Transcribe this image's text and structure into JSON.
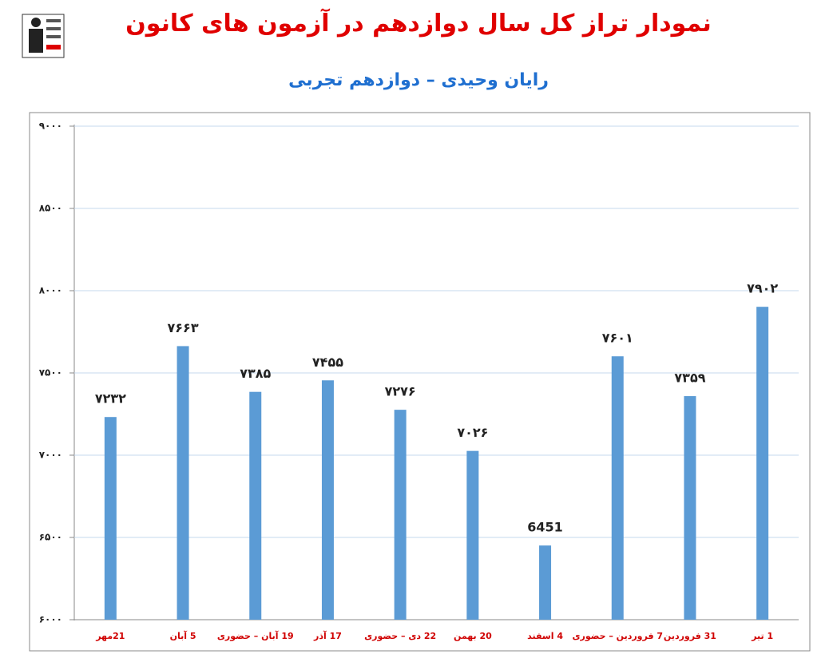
{
  "chart_data": {
    "type": "bar",
    "title": "نمودار تراز کل سال دوازدهم در آزمون های کانون",
    "subtitle": "رایان وحیدی – دوازدهم تجربی",
    "categories": [
      "21مهر",
      "5 آبان",
      "19 آبان – حضوری",
      "17 آذر",
      "22 دی – حضوری",
      "20 بهمن",
      "4 اسفند",
      "7 فروردین – حضوری",
      "31 فروردین",
      "1 تیر"
    ],
    "values": [
      7232,
      7663,
      7385,
      7455,
      7276,
      7026,
      6451,
      7601,
      7359,
      7902
    ],
    "value_labels": [
      "۷۲۳۲",
      "۷۶۶۳",
      "۷۳۸۵",
      "۷۴۵۵",
      "۷۲۷۶",
      "۷۰۲۶",
      "6451",
      "۷۶۰۱",
      "۷۳۵۹",
      "۷۹۰۲"
    ],
    "color": "#5b9bd5",
    "ylim": [
      6000,
      9000
    ],
    "yticks": [
      {
        "value": 6000,
        "label": "۶۰۰۰"
      },
      {
        "value": 6500,
        "label": "۶۵۰۰"
      },
      {
        "value": 7000,
        "label": "۷۰۰۰"
      },
      {
        "value": 7500,
        "label": "۷۵۰۰"
      },
      {
        "value": 8000,
        "label": "۸۰۰۰"
      },
      {
        "value": 8500,
        "label": "۸۵۰۰"
      },
      {
        "value": 9000,
        "label": "۹۰۰۰"
      }
    ],
    "grid": true
  }
}
